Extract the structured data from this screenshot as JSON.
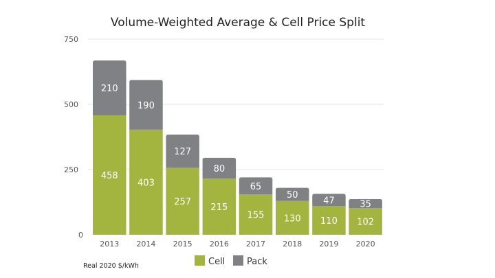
{
  "chart_data": {
    "type": "bar",
    "stacked": true,
    "title": "Volume-Weighted Average & Cell Price Split",
    "xlabel": "",
    "ylabel": "",
    "unit_note": "Real 2020 $/kWh",
    "categories": [
      "2013",
      "2014",
      "2015",
      "2016",
      "2017",
      "2018",
      "2019",
      "2020"
    ],
    "series": [
      {
        "name": "Cell",
        "color": "#a3b43f",
        "values": [
          458,
          403,
          257,
          215,
          155,
          130,
          110,
          102
        ]
      },
      {
        "name": "Pack",
        "color": "#808184",
        "values": [
          210,
          190,
          127,
          80,
          65,
          50,
          47,
          35
        ]
      }
    ],
    "ylim": [
      0,
      750
    ],
    "yticks": [
      0,
      250,
      500,
      750
    ],
    "grid": true,
    "legend": "bottom-center"
  }
}
